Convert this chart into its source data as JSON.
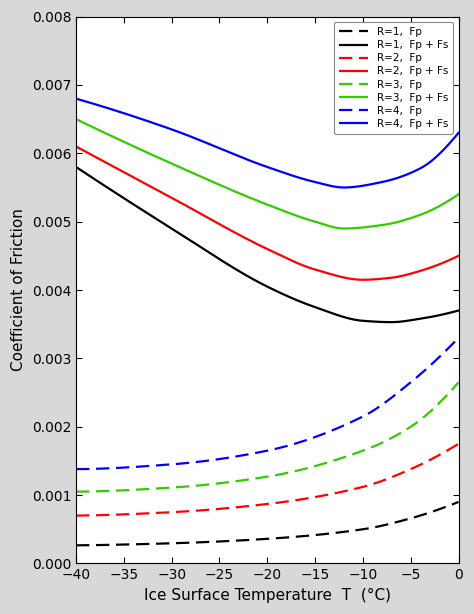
{
  "xlabel": "Ice Surface Temperature  T  (°C)",
  "ylabel": "Coefficient of Friction",
  "xlim": [
    -40,
    0
  ],
  "ylim": [
    0,
    0.008
  ],
  "x_ticks": [
    -40,
    -35,
    -30,
    -25,
    -20,
    -15,
    -10,
    -5,
    0
  ],
  "y_ticks": [
    0.0,
    0.001,
    0.002,
    0.003,
    0.004,
    0.005,
    0.006,
    0.007,
    0.008
  ],
  "colors": {
    "R1": "#000000",
    "R2": "#ff0000",
    "R3": "#33cc00",
    "R4": "#0000ff"
  },
  "legend_entries": [
    {
      "label": "R=1,  Fp",
      "color": "#000000",
      "linestyle": "dashed"
    },
    {
      "label": "R=1,  Fp + Fs",
      "color": "#000000",
      "linestyle": "solid"
    },
    {
      "label": "R=2,  Fp",
      "color": "#ff0000",
      "linestyle": "dashed"
    },
    {
      "label": "R=2,  Fp + Fs",
      "color": "#ff0000",
      "linestyle": "solid"
    },
    {
      "label": "R=3,  Fp",
      "color": "#33cc00",
      "linestyle": "dashed"
    },
    {
      "label": "R=3,  Fp + Fs",
      "color": "#33cc00",
      "linestyle": "solid"
    },
    {
      "label": "R=4,  Fp",
      "color": "#0000ff",
      "linestyle": "dashed"
    },
    {
      "label": "R=4,  Fp + Fs",
      "color": "#0000ff",
      "linestyle": "solid"
    }
  ],
  "background_color": "#d8d8d8",
  "plot_bg_color": "#ffffff",
  "solid_curves": {
    "R1": {
      "T_ctrl": [
        -40,
        -30,
        -20,
        -15,
        -10,
        -7,
        -4,
        0
      ],
      "y_ctrl": [
        0.0058,
        0.0049,
        0.00405,
        0.00375,
        0.00355,
        0.00353,
        0.00358,
        0.0037
      ]
    },
    "R2": {
      "T_ctrl": [
        -40,
        -30,
        -20,
        -15,
        -10,
        -7,
        -4,
        0
      ],
      "y_ctrl": [
        0.0061,
        0.00535,
        0.0046,
        0.0043,
        0.00415,
        0.00418,
        0.00428,
        0.0045
      ]
    },
    "R3": {
      "T_ctrl": [
        -40,
        -30,
        -20,
        -15,
        -12,
        -8,
        -4,
        0
      ],
      "y_ctrl": [
        0.0065,
        0.00585,
        0.00525,
        0.005,
        0.0049,
        0.00495,
        0.0051,
        0.0054
      ]
    },
    "R4": {
      "T_ctrl": [
        -40,
        -30,
        -20,
        -15,
        -12,
        -8,
        -4,
        0
      ],
      "y_ctrl": [
        0.0068,
        0.00635,
        0.0058,
        0.00558,
        0.0055,
        0.00558,
        0.00578,
        0.0063
      ]
    }
  },
  "dashed_curves": {
    "R1": {
      "T_ctrl": [
        -40,
        -30,
        -20,
        -10,
        -5,
        0
      ],
      "y_ctrl": [
        0.000265,
        0.000295,
        0.00036,
        0.0005,
        0.00066,
        0.0009
      ]
    },
    "R2": {
      "T_ctrl": [
        -40,
        -30,
        -20,
        -10,
        -5,
        0
      ],
      "y_ctrl": [
        0.0007,
        0.00075,
        0.00087,
        0.00112,
        0.00138,
        0.00175
      ]
    },
    "R3": {
      "T_ctrl": [
        -40,
        -30,
        -20,
        -10,
        -5,
        0
      ],
      "y_ctrl": [
        0.00105,
        0.00111,
        0.00127,
        0.00165,
        0.002,
        0.00265
      ]
    },
    "R4": {
      "T_ctrl": [
        -40,
        -30,
        -20,
        -10,
        -5,
        0
      ],
      "y_ctrl": [
        0.00138,
        0.00145,
        0.00165,
        0.00215,
        0.00265,
        0.0033
      ]
    }
  }
}
